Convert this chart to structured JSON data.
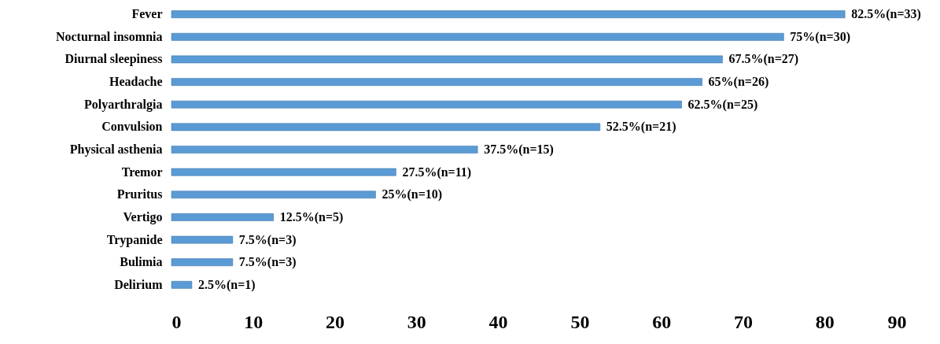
{
  "chart_data": {
    "type": "bar",
    "orientation": "horizontal",
    "categories": [
      "Fever",
      "Nocturnal insomnia",
      "Diurnal sleepiness",
      "Headache",
      "Polyarthralgia",
      "Convulsion",
      "Physical asthenia",
      "Tremor",
      "Pruritus",
      "Vertigo",
      "Trypanide",
      "Bulimia",
      "Delirium"
    ],
    "values": [
      82.5,
      75,
      67.5,
      65,
      62.5,
      52.5,
      37.5,
      27.5,
      25,
      12.5,
      7.5,
      7.5,
      2.5
    ],
    "value_labels": [
      "82.5%(n=33)",
      "75%(n=30)",
      "67.5%(n=27)",
      "65%(n=26)",
      "62.5%(n=25)",
      "52.5%(n=21)",
      "37.5%(n=15)",
      "27.5%(n=11)",
      "25%(n=10)",
      "12.5%(n=5)",
      "7.5%(n=3)",
      "7.5%(n=3)",
      "2.5%(n=1)"
    ],
    "color": "#5b9bd5",
    "xlim": [
      0,
      90
    ],
    "xticks": [
      0,
      10,
      20,
      30,
      40,
      50,
      60,
      70,
      80,
      90
    ],
    "grid": false
  }
}
